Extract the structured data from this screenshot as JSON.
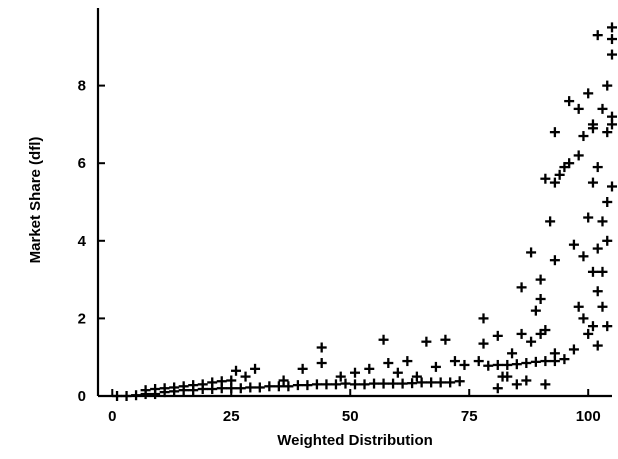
{
  "chart_data": {
    "type": "scatter",
    "title": "",
    "xlabel": "Weighted Distribution",
    "ylabel": "Market Share (dfl)",
    "xlim": [
      -3,
      105
    ],
    "ylim": [
      0,
      10
    ],
    "xticks": [
      0,
      25,
      50,
      75,
      100
    ],
    "yticks": [
      0,
      2,
      4,
      6,
      8
    ],
    "xtick_labels": [
      "0",
      "25",
      "50",
      "75",
      "100"
    ],
    "ytick_labels": [
      "0",
      "2",
      "4",
      "6",
      "8"
    ],
    "grid": false,
    "marker": "plus",
    "points": [
      [
        1,
        0.0
      ],
      [
        3,
        0.0
      ],
      [
        5,
        0.02
      ],
      [
        7,
        0.05
      ],
      [
        9,
        0.05
      ],
      [
        11,
        0.1
      ],
      [
        13,
        0.12
      ],
      [
        15,
        0.15
      ],
      [
        17,
        0.15
      ],
      [
        19,
        0.18
      ],
      [
        21,
        0.18
      ],
      [
        23,
        0.2
      ],
      [
        25,
        0.2
      ],
      [
        27,
        0.2
      ],
      [
        29,
        0.22
      ],
      [
        31,
        0.22
      ],
      [
        33,
        0.25
      ],
      [
        35,
        0.25
      ],
      [
        37,
        0.25
      ],
      [
        39,
        0.28
      ],
      [
        41,
        0.28
      ],
      [
        43,
        0.3
      ],
      [
        45,
        0.3
      ],
      [
        47,
        0.3
      ],
      [
        49,
        0.32
      ],
      [
        51,
        0.3
      ],
      [
        53,
        0.3
      ],
      [
        55,
        0.32
      ],
      [
        57,
        0.32
      ],
      [
        59,
        0.32
      ],
      [
        61,
        0.32
      ],
      [
        63,
        0.33
      ],
      [
        65,
        0.35
      ],
      [
        67,
        0.35
      ],
      [
        69,
        0.35
      ],
      [
        71,
        0.35
      ],
      [
        73,
        0.38
      ],
      [
        79,
        0.78
      ],
      [
        81,
        0.8
      ],
      [
        83,
        0.8
      ],
      [
        85,
        0.82
      ],
      [
        87,
        0.85
      ],
      [
        89,
        0.88
      ],
      [
        91,
        0.9
      ],
      [
        93,
        0.9
      ],
      [
        95,
        0.95
      ],
      [
        7,
        0.15
      ],
      [
        9,
        0.18
      ],
      [
        11,
        0.2
      ],
      [
        13,
        0.22
      ],
      [
        15,
        0.25
      ],
      [
        17,
        0.28
      ],
      [
        19,
        0.3
      ],
      [
        21,
        0.35
      ],
      [
        23,
        0.38
      ],
      [
        25,
        0.4
      ],
      [
        26,
        0.65
      ],
      [
        28,
        0.5
      ],
      [
        30,
        0.7
      ],
      [
        36,
        0.4
      ],
      [
        40,
        0.7
      ],
      [
        44,
        1.25
      ],
      [
        44,
        0.85
      ],
      [
        48,
        0.5
      ],
      [
        51,
        0.6
      ],
      [
        54,
        0.7
      ],
      [
        57,
        1.45
      ],
      [
        58,
        0.85
      ],
      [
        60,
        0.6
      ],
      [
        62,
        0.9
      ],
      [
        64,
        0.5
      ],
      [
        66,
        1.4
      ],
      [
        68,
        0.75
      ],
      [
        70,
        1.45
      ],
      [
        72,
        0.9
      ],
      [
        74,
        0.8
      ],
      [
        77,
        0.9
      ],
      [
        78,
        1.35
      ],
      [
        78,
        2.0
      ],
      [
        81,
        1.55
      ],
      [
        82,
        0.5
      ],
      [
        84,
        1.1
      ],
      [
        85,
        0.3
      ],
      [
        86,
        1.6
      ],
      [
        86,
        2.8
      ],
      [
        88,
        1.4
      ],
      [
        88,
        3.7
      ],
      [
        89,
        2.2
      ],
      [
        90,
        1.6
      ],
      [
        90,
        2.5
      ],
      [
        90,
        3.0
      ],
      [
        91,
        1.7
      ],
      [
        91,
        5.6
      ],
      [
        92,
        4.5
      ],
      [
        93,
        1.1
      ],
      [
        93,
        3.5
      ],
      [
        93,
        5.5
      ],
      [
        93,
        6.8
      ],
      [
        94,
        5.7
      ],
      [
        95,
        5.9
      ],
      [
        96,
        7.6
      ],
      [
        96,
        6.0
      ],
      [
        97,
        3.9
      ],
      [
        97,
        1.2
      ],
      [
        98,
        6.2
      ],
      [
        98,
        7.4
      ],
      [
        98,
        2.3
      ],
      [
        99,
        6.7
      ],
      [
        99,
        3.6
      ],
      [
        99,
        2.0
      ],
      [
        100,
        7.8
      ],
      [
        100,
        4.6
      ],
      [
        100,
        1.6
      ],
      [
        101,
        5.5
      ],
      [
        101,
        3.2
      ],
      [
        101,
        1.8
      ],
      [
        101,
        6.9
      ],
      [
        101,
        7.0
      ],
      [
        102,
        9.3
      ],
      [
        102,
        5.9
      ],
      [
        102,
        3.8
      ],
      [
        102,
        2.7
      ],
      [
        102,
        1.3
      ],
      [
        103,
        7.4
      ],
      [
        103,
        4.5
      ],
      [
        103,
        3.2
      ],
      [
        103,
        2.3
      ],
      [
        104,
        8.0
      ],
      [
        104,
        6.8
      ],
      [
        104,
        5.0
      ],
      [
        104,
        4.0
      ],
      [
        104,
        1.8
      ],
      [
        105,
        9.2
      ],
      [
        105,
        8.8
      ],
      [
        105,
        7.0
      ],
      [
        105,
        5.4
      ],
      [
        105,
        9.5
      ],
      [
        105,
        7.2
      ],
      [
        83,
        0.5
      ],
      [
        87,
        0.4
      ],
      [
        91,
        0.3
      ],
      [
        81,
        0.2
      ]
    ]
  }
}
